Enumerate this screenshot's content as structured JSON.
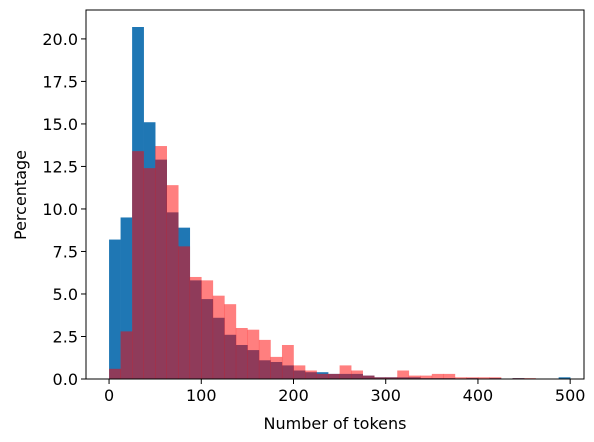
{
  "chart_data": {
    "type": "bar",
    "title": "",
    "xlabel": "Number of tokens",
    "ylabel": "Percentage",
    "xlim": [
      -25,
      515
    ],
    "ylim": [
      0,
      21.7
    ],
    "xticks": [
      0,
      100,
      200,
      300,
      400,
      500
    ],
    "xtick_labels": [
      "0",
      "100",
      "200",
      "300",
      "400",
      "500"
    ],
    "yticks": [
      0,
      2.5,
      5,
      7.5,
      10,
      12.5,
      15,
      17.5,
      20
    ],
    "ytick_labels": [
      "0.0",
      "2.5",
      "5.0",
      "7.5",
      "10.0",
      "12.5",
      "15.0",
      "17.5",
      "20.0"
    ],
    "grid": false,
    "legend": "none",
    "series": [
      {
        "color": "#1f77b4",
        "opacity": 1.0,
        "bins": [
          {
            "x0": 0,
            "x1": 12.5,
            "value": 8.2
          },
          {
            "x0": 12.5,
            "x1": 25,
            "value": 9.5
          },
          {
            "x0": 25,
            "x1": 37.5,
            "value": 20.7
          },
          {
            "x0": 37.5,
            "x1": 50,
            "value": 15.1
          },
          {
            "x0": 50,
            "x1": 62.5,
            "value": 12.9
          },
          {
            "x0": 62.5,
            "x1": 75,
            "value": 9.8
          },
          {
            "x0": 75,
            "x1": 87.5,
            "value": 8.9
          },
          {
            "x0": 87.5,
            "x1": 100,
            "value": 5.8
          },
          {
            "x0": 100,
            "x1": 112.5,
            "value": 4.7
          },
          {
            "x0": 112.5,
            "x1": 125,
            "value": 3.6
          },
          {
            "x0": 125,
            "x1": 137.5,
            "value": 2.6
          },
          {
            "x0": 137.5,
            "x1": 150,
            "value": 2.0
          },
          {
            "x0": 150,
            "x1": 162.5,
            "value": 1.7
          },
          {
            "x0": 162.5,
            "x1": 175,
            "value": 1.1
          },
          {
            "x0": 175,
            "x1": 187.5,
            "value": 1.0
          },
          {
            "x0": 187.5,
            "x1": 200,
            "value": 0.8
          },
          {
            "x0": 200,
            "x1": 212.5,
            "value": 0.5
          },
          {
            "x0": 212.5,
            "x1": 225,
            "value": 0.4
          },
          {
            "x0": 225,
            "x1": 237.5,
            "value": 0.4
          },
          {
            "x0": 237.5,
            "x1": 250,
            "value": 0.3
          },
          {
            "x0": 250,
            "x1": 262.5,
            "value": 0.3
          },
          {
            "x0": 262.5,
            "x1": 275,
            "value": 0.3
          },
          {
            "x0": 275,
            "x1": 287.5,
            "value": 0.2
          },
          {
            "x0": 287.5,
            "x1": 300,
            "value": 0.1
          },
          {
            "x0": 300,
            "x1": 312.5,
            "value": 0.1
          },
          {
            "x0": 312.5,
            "x1": 325,
            "value": 0.1
          },
          {
            "x0": 325,
            "x1": 337.5,
            "value": 0.1
          },
          {
            "x0": 337.5,
            "x1": 350,
            "value": 0.05
          },
          {
            "x0": 350,
            "x1": 362.5,
            "value": 0.05
          },
          {
            "x0": 362.5,
            "x1": 375,
            "value": 0.05
          },
          {
            "x0": 387.5,
            "x1": 400,
            "value": 0.05
          },
          {
            "x0": 412.5,
            "x1": 425,
            "value": 0.05
          },
          {
            "x0": 437.5,
            "x1": 450,
            "value": 0.05
          },
          {
            "x0": 487.5,
            "x1": 500,
            "value": 0.1
          }
        ]
      },
      {
        "color": "#ff0000",
        "opacity": 0.5,
        "bins": [
          {
            "x0": 0,
            "x1": 12.5,
            "value": 0.6
          },
          {
            "x0": 12.5,
            "x1": 25,
            "value": 2.8
          },
          {
            "x0": 25,
            "x1": 37.5,
            "value": 13.4
          },
          {
            "x0": 37.5,
            "x1": 50,
            "value": 12.4
          },
          {
            "x0": 50,
            "x1": 62.5,
            "value": 13.7
          },
          {
            "x0": 62.5,
            "x1": 75,
            "value": 11.4
          },
          {
            "x0": 75,
            "x1": 87.5,
            "value": 7.8
          },
          {
            "x0": 87.5,
            "x1": 100,
            "value": 6.0
          },
          {
            "x0": 100,
            "x1": 112.5,
            "value": 5.8
          },
          {
            "x0": 112.5,
            "x1": 125,
            "value": 4.9
          },
          {
            "x0": 125,
            "x1": 137.5,
            "value": 4.4
          },
          {
            "x0": 137.5,
            "x1": 150,
            "value": 3.0
          },
          {
            "x0": 150,
            "x1": 162.5,
            "value": 2.9
          },
          {
            "x0": 162.5,
            "x1": 175,
            "value": 2.3
          },
          {
            "x0": 175,
            "x1": 187.5,
            "value": 1.3
          },
          {
            "x0": 187.5,
            "x1": 200,
            "value": 2.0
          },
          {
            "x0": 200,
            "x1": 212.5,
            "value": 0.8
          },
          {
            "x0": 212.5,
            "x1": 225,
            "value": 0.5
          },
          {
            "x0": 225,
            "x1": 237.5,
            "value": 0.3
          },
          {
            "x0": 237.5,
            "x1": 250,
            "value": 0.3
          },
          {
            "x0": 250,
            "x1": 262.5,
            "value": 0.8
          },
          {
            "x0": 262.5,
            "x1": 275,
            "value": 0.5
          },
          {
            "x0": 275,
            "x1": 287.5,
            "value": 0.2
          },
          {
            "x0": 287.5,
            "x1": 300,
            "value": 0.1
          },
          {
            "x0": 300,
            "x1": 312.5,
            "value": 0.1
          },
          {
            "x0": 312.5,
            "x1": 325,
            "value": 0.5
          },
          {
            "x0": 325,
            "x1": 337.5,
            "value": 0.2
          },
          {
            "x0": 337.5,
            "x1": 350,
            "value": 0.2
          },
          {
            "x0": 350,
            "x1": 362.5,
            "value": 0.3
          },
          {
            "x0": 362.5,
            "x1": 375,
            "value": 0.3
          },
          {
            "x0": 375,
            "x1": 387.5,
            "value": 0.1
          },
          {
            "x0": 387.5,
            "x1": 400,
            "value": 0.1
          },
          {
            "x0": 400,
            "x1": 412.5,
            "value": 0.1
          },
          {
            "x0": 412.5,
            "x1": 425,
            "value": 0.1
          },
          {
            "x0": 437.5,
            "x1": 450,
            "value": 0.05
          },
          {
            "x0": 450,
            "x1": 462.5,
            "value": 0.05
          }
        ]
      }
    ]
  }
}
